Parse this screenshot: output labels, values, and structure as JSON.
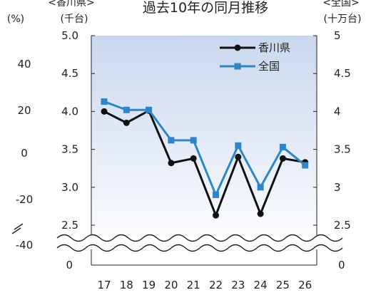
{
  "chart_data": {
    "type": "line",
    "title": "過去10年の同月推移",
    "headers": {
      "left_outer_unit": "(%)",
      "left_inner_series": "<香川県>",
      "left_inner_unit": "(千台)",
      "right_series": "<全国>",
      "right_unit": "(十万台)"
    },
    "categories": [
      "17",
      "18",
      "19",
      "20",
      "21",
      "22",
      "23",
      "24",
      "25",
      "26"
    ],
    "series": [
      {
        "name": "香川県",
        "axis": "left",
        "color": "#111111",
        "marker": "circle",
        "values": [
          4.0,
          3.85,
          4.01,
          3.32,
          3.38,
          2.63,
          3.4,
          2.65,
          3.38,
          3.33
        ]
      },
      {
        "name": "全国",
        "axis": "right",
        "color": "#2E86C9",
        "marker": "square",
        "values": [
          4.13,
          4.02,
          4.02,
          3.62,
          3.62,
          2.9,
          3.55,
          3.0,
          3.53,
          3.29
        ]
      }
    ],
    "y_left": {
      "range": [
        2.5,
        5.0
      ],
      "ticks": [
        "5.0",
        "4.5",
        "4.0",
        "3.5",
        "3.0",
        "2.5"
      ],
      "break_to": "0"
    },
    "y_right": {
      "range": [
        2.5,
        5.0
      ],
      "ticks": [
        "5",
        "4.5",
        "4",
        "3.5",
        "3",
        "2.5"
      ],
      "break_to": "0"
    },
    "y_outer_left": {
      "ticks": [
        "40",
        "20",
        "0",
        "-20",
        "-40"
      ]
    },
    "grid": false,
    "legend_position": "top-right",
    "plot_background": [
      "#c9d7ee",
      "#ffffff"
    ]
  }
}
